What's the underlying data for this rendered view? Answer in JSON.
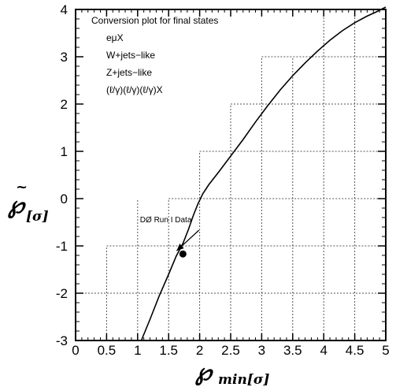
{
  "chart_data": {
    "type": "line",
    "xlim": [
      0,
      5
    ],
    "ylim": [
      -3,
      4
    ],
    "x_ticks": [
      "0",
      "0.5",
      "1",
      "1.5",
      "2",
      "2.5",
      "3",
      "3.5",
      "4",
      "4.5",
      "5"
    ],
    "y_ticks": [
      "-3",
      "-2",
      "-1",
      "0",
      "1",
      "2",
      "3",
      "4"
    ],
    "xlabel": {
      "main": "℘",
      "sub": "min[σ]"
    },
    "ylabel": {
      "main": "℘",
      "accent": "~",
      "sub": "[σ]"
    },
    "legend": {
      "title": "Conversion plot for final states",
      "entries": [
        "eμX",
        "W+jets−like",
        "Z+jets−like",
        "(ℓ/γ)(ℓ/γ)(ℓ/γ)X"
      ]
    },
    "staircase_grid": true,
    "series": [
      {
        "x": [
          1.06,
          1.2,
          1.35,
          1.5,
          1.62,
          1.73,
          1.82,
          1.9,
          1.97,
          2.05,
          2.15,
          2.3,
          2.5,
          2.7,
          2.9,
          3.1,
          3.3,
          3.5,
          3.7,
          3.9,
          4.1,
          4.3,
          4.5,
          4.7,
          4.85,
          5.0
        ],
        "y": [
          -3.0,
          -2.55,
          -2.05,
          -1.6,
          -1.22,
          -0.95,
          -0.65,
          -0.35,
          -0.12,
          0.1,
          0.3,
          0.55,
          0.9,
          1.25,
          1.62,
          1.97,
          2.3,
          2.6,
          2.87,
          3.12,
          3.35,
          3.55,
          3.72,
          3.86,
          3.95,
          4.05
        ]
      }
    ],
    "marker": {
      "x": 1.73,
      "y": -1.17
    },
    "annotation": {
      "text": "DØ Run I Data",
      "x": 1.0,
      "y": -0.5
    }
  }
}
